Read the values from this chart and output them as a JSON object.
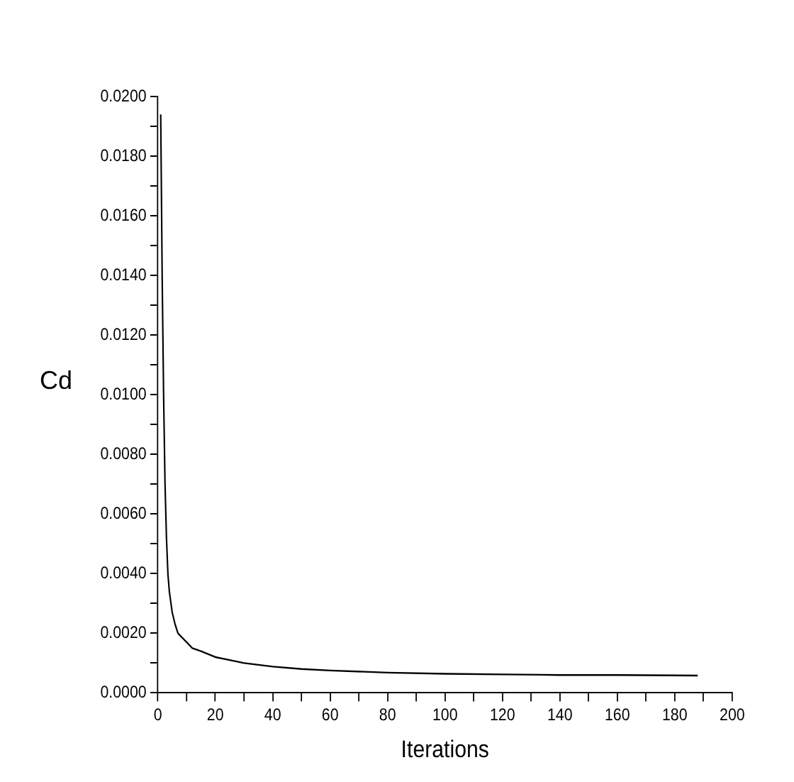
{
  "chart_data": {
    "type": "line",
    "xlabel": "Iterations",
    "ylabel": "Cd",
    "xlim": [
      0,
      200
    ],
    "ylim": [
      0,
      0.02
    ],
    "xticks": [
      0,
      {
        "value": 10,
        "label": null
      },
      20,
      {
        "value": 30,
        "label": null
      },
      40,
      {
        "value": 50,
        "label": null
      },
      60,
      {
        "value": 70,
        "label": null
      },
      80,
      {
        "value": 90,
        "label": null
      },
      100,
      {
        "value": 110,
        "label": null
      },
      120,
      {
        "value": 130,
        "label": null
      },
      140,
      {
        "value": 150,
        "label": null
      },
      160,
      {
        "value": 170,
        "label": null
      },
      180,
      {
        "value": 190,
        "label": null
      },
      200
    ],
    "yticks": [
      {
        "value": 0,
        "label": "0.0000"
      },
      {
        "value": 0.001,
        "label": null
      },
      {
        "value": 0.002,
        "label": "0.0020"
      },
      {
        "value": 0.003,
        "label": null
      },
      {
        "value": 0.004,
        "label": "0.0040"
      },
      {
        "value": 0.005,
        "label": null
      },
      {
        "value": 0.006,
        "label": "0.0060"
      },
      {
        "value": 0.007,
        "label": null
      },
      {
        "value": 0.008,
        "label": "0.0080"
      },
      {
        "value": 0.009,
        "label": null
      },
      {
        "value": 0.01,
        "label": "0.0100"
      },
      {
        "value": 0.011,
        "label": null
      },
      {
        "value": 0.012,
        "label": "0.0120"
      },
      {
        "value": 0.013,
        "label": null
      },
      {
        "value": 0.014,
        "label": "0.0140"
      },
      {
        "value": 0.015,
        "label": null
      },
      {
        "value": 0.016,
        "label": "0.0160"
      },
      {
        "value": 0.017,
        "label": null
      },
      {
        "value": 0.018,
        "label": "0.0180"
      },
      {
        "value": 0.019,
        "label": null
      },
      {
        "value": 0.02,
        "label": "0.0200"
      }
    ],
    "grid": false,
    "legend": false,
    "marker": "none",
    "line_style": "solid",
    "x": [
      1,
      1.5,
      2,
      2.5,
      3,
      3.5,
      4,
      5,
      6,
      7,
      8,
      10,
      12,
      15,
      20,
      25,
      30,
      40,
      50,
      60,
      80,
      100,
      120,
      140,
      160,
      188
    ],
    "series": [
      {
        "color": "#000000",
        "values": [
          0.0194,
          0.014,
          0.01,
          0.007,
          0.0052,
          0.004,
          0.0034,
          0.0027,
          0.0023,
          0.002,
          0.0019,
          0.0017,
          0.0015,
          0.0014,
          0.0012,
          0.0011,
          0.001,
          0.00088,
          0.0008,
          0.00075,
          0.00068,
          0.00064,
          0.00062,
          0.0006,
          0.0006,
          0.00058
        ]
      }
    ]
  }
}
